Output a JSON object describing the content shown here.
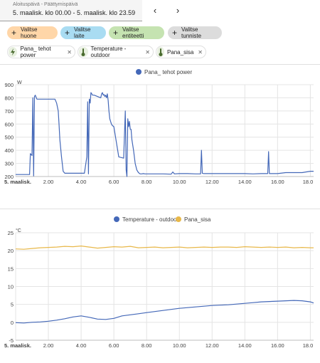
{
  "date_picker": {
    "label": "Aloituspäivä - Päättymispäivä",
    "value": "5. maalisk. klo 00.00 - 5. maalisk. klo 23.59",
    "prev_icon": "chevron-left-icon",
    "next_icon": "chevron-right-icon"
  },
  "target_buttons": [
    {
      "label": "Valitse huone",
      "color": "#ffd6a8"
    },
    {
      "label": "Valitse laite",
      "color": "#a9dcf2"
    },
    {
      "label": "Valitse entiteetti",
      "color": "#c5e3b1"
    },
    {
      "label": "Valitse tunniste",
      "color": "#dcdcdc"
    }
  ],
  "selected_entities": [
    {
      "label": "Pana_ tehot power",
      "icon": "flash-icon"
    },
    {
      "label": "Temperature - outdoor",
      "icon": "thermometer-icon"
    },
    {
      "label": "Pana_sisa",
      "icon": "thermometer-icon"
    }
  ],
  "charts": {
    "power": {
      "legend": "Pana_ tehot power",
      "unit": "W",
      "color": "#4468b8",
      "y_ticks": [
        "900",
        "800",
        "700",
        "600",
        "500",
        "400",
        "300",
        "200"
      ],
      "x_ticks": [
        "5. maalisk.",
        "2.00",
        "4.00",
        "6.00",
        "8.00",
        "10.00",
        "12.00",
        "14.00",
        "16.00",
        "18.0"
      ]
    },
    "temperature": {
      "unit": "°C",
      "y_ticks": [
        "25",
        "20",
        "15",
        "10",
        "5",
        "0",
        "-5"
      ],
      "x_ticks": [
        "5. maalisk.",
        "2.00",
        "4.00",
        "6.00",
        "8.00",
        "10.00",
        "12.00",
        "14.00",
        "16.00",
        "18.0"
      ],
      "series": [
        {
          "name": "Temperature - outdoor",
          "color": "#4468b8"
        },
        {
          "name": "Pana_sisa",
          "color": "#e8b84a"
        }
      ]
    }
  },
  "chart_data": [
    {
      "type": "line",
      "ylabel": "W",
      "ylim": [
        200,
        900
      ],
      "xlim_hours": [
        0,
        18.2
      ],
      "series": [
        {
          "name": "Pana_ tehot power",
          "x": [
            0,
            0.85,
            0.9,
            1.0,
            1.05,
            1.1,
            1.15,
            1.2,
            1.3,
            1.5,
            2.4,
            2.5,
            2.6,
            2.65,
            2.7,
            2.8,
            2.9,
            3.0,
            3.1,
            3.2,
            4.2,
            4.35,
            4.4,
            4.45,
            4.5,
            4.55,
            4.6,
            4.7,
            4.8,
            5.2,
            5.25,
            5.3,
            5.35,
            5.4,
            5.45,
            5.5,
            5.55,
            5.6,
            5.65,
            5.7,
            5.75,
            5.8,
            5.85,
            5.9,
            6.0,
            6.3,
            6.6,
            6.7,
            6.75,
            6.8,
            6.85,
            6.9,
            6.95,
            7.0,
            7.05,
            7.1,
            7.2,
            7.3,
            7.4,
            7.5,
            7.6,
            7.7,
            7.8,
            7.9,
            8.0,
            9.0,
            9.5,
            9.6,
            9.7,
            10.0,
            10.5,
            11.0,
            11.3,
            11.35,
            11.4,
            11.5,
            12.0,
            12.5,
            13.0,
            13.5,
            14.0,
            14.5,
            15.0,
            15.4,
            15.45,
            15.5,
            15.6,
            16.0,
            16.5,
            17.0,
            17.5,
            18.0,
            18.2
          ],
          "y": [
            215,
            215,
            375,
            360,
            800,
            205,
            810,
            820,
            790,
            790,
            790,
            760,
            700,
            600,
            480,
            350,
            240,
            225,
            225,
            225,
            225,
            350,
            770,
            220,
            790,
            760,
            840,
            820,
            820,
            800,
            830,
            840,
            820,
            825,
            810,
            820,
            800,
            830,
            780,
            700,
            640,
            620,
            600,
            590,
            580,
            350,
            340,
            700,
            250,
            200,
            640,
            580,
            620,
            560,
            560,
            480,
            400,
            300,
            250,
            230,
            220,
            220,
            222,
            220,
            220,
            220,
            218,
            235,
            220,
            222,
            222,
            220,
            220,
            400,
            225,
            222,
            222,
            222,
            222,
            222,
            222,
            220,
            222,
            222,
            390,
            222,
            222,
            222,
            230,
            230,
            230,
            240,
            240
          ]
        }
      ]
    },
    {
      "type": "line",
      "ylabel": "°C",
      "ylim": [
        -5,
        25
      ],
      "xlim_hours": [
        0,
        18.2
      ],
      "series": [
        {
          "name": "Temperature - outdoor",
          "x": [
            0,
            0.5,
            1,
            1.5,
            2,
            2.5,
            3,
            3.5,
            4,
            4.5,
            5,
            5.5,
            6,
            6.5,
            7,
            7.5,
            8,
            8.5,
            9,
            9.5,
            10,
            10.5,
            11,
            11.5,
            12,
            12.5,
            13,
            13.5,
            14,
            14.5,
            15,
            15.5,
            16,
            16.5,
            17,
            17.5,
            18,
            18.2
          ],
          "y": [
            -0.1,
            -0.2,
            0,
            0.1,
            0.3,
            0.6,
            1.0,
            1.5,
            1.8,
            1.4,
            0.9,
            0.8,
            1.1,
            1.8,
            2.1,
            2.4,
            2.7,
            3.0,
            3.3,
            3.6,
            3.9,
            4.1,
            4.3,
            4.5,
            4.7,
            4.8,
            4.9,
            5.1,
            5.3,
            5.5,
            5.7,
            5.8,
            5.9,
            6.0,
            6.1,
            6.0,
            5.7,
            5.4
          ]
        },
        {
          "name": "Pana_sisa",
          "x": [
            0,
            0.5,
            1,
            1.5,
            2,
            2.5,
            3,
            3.5,
            4,
            4.5,
            5,
            5.5,
            6,
            6.5,
            7,
            7.5,
            8,
            8.5,
            9,
            9.5,
            10,
            10.5,
            11,
            11.5,
            12,
            12.5,
            13,
            13.5,
            14,
            14.5,
            15,
            15.5,
            16,
            16.5,
            17,
            17.5,
            18,
            18.2
          ],
          "y": [
            20.5,
            20.4,
            20.6,
            20.8,
            20.9,
            21.0,
            21.2,
            21.1,
            21.3,
            21.0,
            20.7,
            20.9,
            21.1,
            21.0,
            21.2,
            20.8,
            20.9,
            21.0,
            20.8,
            20.9,
            21.0,
            20.8,
            20.9,
            21.0,
            20.9,
            21.0,
            21.0,
            20.9,
            21.1,
            21.0,
            20.9,
            21.0,
            20.9,
            21.0,
            20.8,
            20.9,
            20.8,
            20.8
          ]
        }
      ]
    }
  ]
}
